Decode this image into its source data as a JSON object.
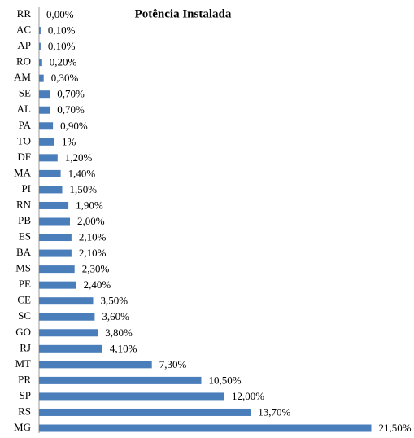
{
  "chart_data": {
    "type": "bar",
    "orientation": "horizontal",
    "title": "Potência Instalada",
    "categories": [
      "RR",
      "AC",
      "AP",
      "RO",
      "AM",
      "SE",
      "AL",
      "PA",
      "TO",
      "DF",
      "MA",
      "PI",
      "RN",
      "PB",
      "ES",
      "BA",
      "MS",
      "PE",
      "CE",
      "SC",
      "GO",
      "RJ",
      "MT",
      "PR",
      "SP",
      "RS",
      "MG"
    ],
    "values": [
      0,
      0.1,
      0.1,
      0.2,
      0.3,
      0.7,
      0.7,
      0.9,
      1,
      1.2,
      1.4,
      1.5,
      1.9,
      2.0,
      2.1,
      2.1,
      2.3,
      2.4,
      3.5,
      3.6,
      3.8,
      4.1,
      7.3,
      10.5,
      12.0,
      13.7,
      21.5
    ],
    "value_labels": [
      "0,00%",
      "0,10%",
      "0,10%",
      "0,20%",
      "0,30%",
      "0,70%",
      "0,70%",
      "0,90%",
      "1%",
      "1,20%",
      "1,40%",
      "1,50%",
      "1,90%",
      "2,00%",
      "2,10%",
      "2,10%",
      "2,30%",
      "2,40%",
      "3,50%",
      "3,60%",
      "3,80%",
      "4,10%",
      "7,30%",
      "10,50%",
      "12,00%",
      "13,70%",
      "21,50%"
    ],
    "color": "#4a7ebb"
  }
}
